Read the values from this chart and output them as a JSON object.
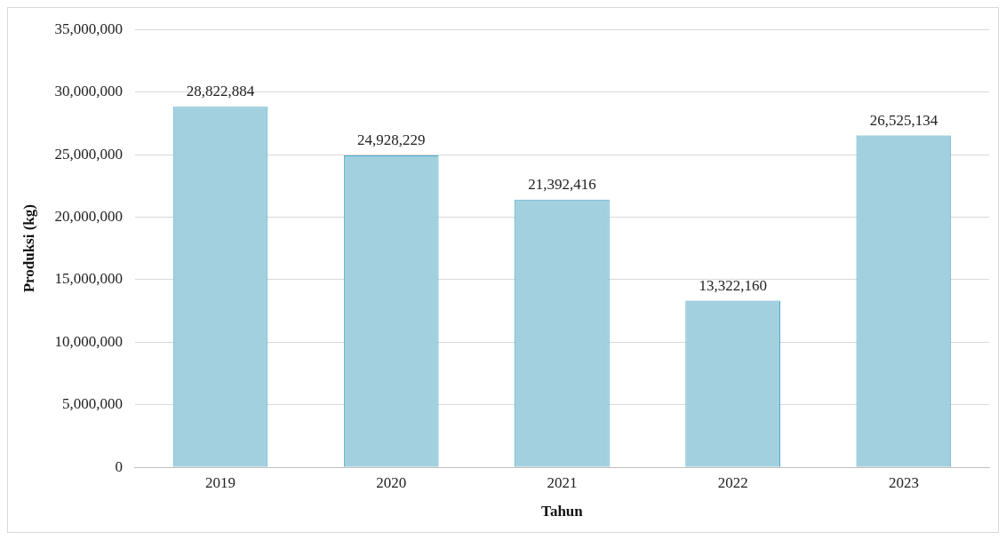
{
  "chart_data": {
    "type": "bar",
    "xlabel": "Tahun",
    "ylabel": "Produksi (kg)",
    "categories": [
      "2019",
      "2020",
      "2021",
      "2022",
      "2023"
    ],
    "values": [
      28822884,
      24928229,
      21392416,
      13322160,
      26525134
    ],
    "color": "#a3d0df",
    "ylim": [
      0,
      35000000
    ],
    "yticks": [
      {
        "value": 0,
        "label": "0"
      },
      {
        "value": 5000000,
        "label": "5,000,000"
      },
      {
        "value": 10000000,
        "label": "10,000,000"
      },
      {
        "value": 15000000,
        "label": "15,000,000"
      },
      {
        "value": 20000000,
        "label": "20,000,000"
      },
      {
        "value": 25000000,
        "label": "25,000,000"
      },
      {
        "value": 30000000,
        "label": "30,000,000"
      },
      {
        "value": 35000000,
        "label": "35,000,000"
      }
    ],
    "value_labels": [
      "28,822,884",
      "24,928,229",
      "21,392,416",
      "13,322,160",
      "26,525,134"
    ],
    "grid": "y",
    "legend": false
  }
}
